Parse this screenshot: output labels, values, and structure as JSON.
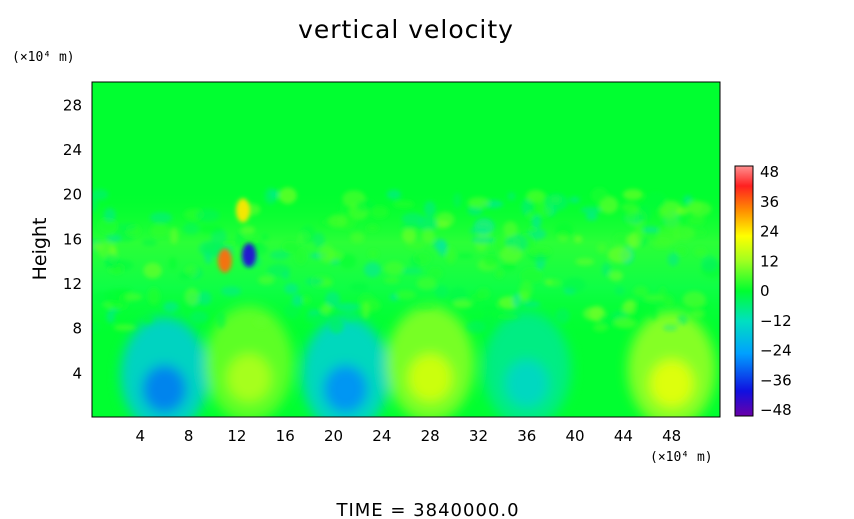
{
  "chart_data": {
    "type": "heatmap",
    "title": "vertical velocity",
    "xlabel": "",
    "ylabel": "Height",
    "x_unit": "(×10⁴ m)",
    "y_unit": "(×10⁴ m)",
    "xlim": [
      0,
      52
    ],
    "ylim": [
      0,
      30
    ],
    "xticks": [
      "4",
      "8",
      "12",
      "16",
      "20",
      "24",
      "28",
      "32",
      "36",
      "40",
      "44",
      "48"
    ],
    "yticks": [
      "4",
      "8",
      "12",
      "16",
      "20",
      "24",
      "28"
    ],
    "colorbar": {
      "vmin": -48,
      "vmax": 48,
      "ticks": [
        "48",
        "36",
        "24",
        "12",
        "0",
        "−12",
        "−24",
        "−36",
        "−48"
      ]
    },
    "features": [
      {
        "x": 6,
        "y": 2.5,
        "value": -28
      },
      {
        "x": 13,
        "y": 3.5,
        "value": 14
      },
      {
        "x": 21,
        "y": 2.5,
        "value": -26
      },
      {
        "x": 28,
        "y": 3.5,
        "value": 18
      },
      {
        "x": 36,
        "y": 3.0,
        "value": -14
      },
      {
        "x": 48,
        "y": 3.0,
        "value": 20
      },
      {
        "x": 13,
        "y": 14.5,
        "value": -40
      },
      {
        "x": 11,
        "y": 14.0,
        "value": 34
      },
      {
        "x": 12.5,
        "y": 18.5,
        "value": 24
      }
    ]
  },
  "footer": {
    "time_label": "TIME  =  3840000.0"
  }
}
